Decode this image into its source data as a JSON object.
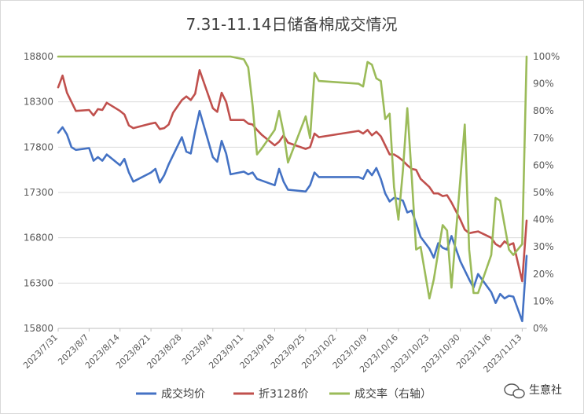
{
  "chart_data": {
    "type": "line",
    "title": "7.31-11.14日储备棉成交情况",
    "xlabel": "",
    "ylabel": "",
    "y_left": {
      "ylim": [
        15800,
        18800
      ],
      "ticks": [
        15800,
        16300,
        16800,
        17300,
        17800,
        18300,
        18800
      ]
    },
    "y_right": {
      "ylim": [
        0,
        100
      ],
      "ticks": [
        0,
        10,
        20,
        30,
        40,
        50,
        60,
        70,
        80,
        90,
        100
      ],
      "suffix": "%"
    },
    "x_range": [
      "2023/7/31",
      "2023/11/14"
    ],
    "x_ticks": [
      "2023/7/31",
      "2023/8/7",
      "2023/8/14",
      "2023/8/21",
      "2023/8/28",
      "2023/9/4",
      "2023/9/11",
      "2023/9/18",
      "2023/9/25",
      "2023/10/2",
      "2023/10/9",
      "2023/10/16",
      "2023/10/23",
      "2023/10/30",
      "2023/11/6",
      "2023/11/13"
    ],
    "grid": true,
    "legend": "bottom",
    "series": [
      {
        "name": "成交均价",
        "color": "#4472c4",
        "axis": "left",
        "points": [
          [
            "2023/7/31",
            17960
          ],
          [
            "2023/8/1",
            18020
          ],
          [
            "2023/8/2",
            17940
          ],
          [
            "2023/8/3",
            17800
          ],
          [
            "2023/8/4",
            17770
          ],
          [
            "2023/8/7",
            17790
          ],
          [
            "2023/8/8",
            17650
          ],
          [
            "2023/8/9",
            17690
          ],
          [
            "2023/8/10",
            17650
          ],
          [
            "2023/8/11",
            17720
          ],
          [
            "2023/8/14",
            17600
          ],
          [
            "2023/8/15",
            17670
          ],
          [
            "2023/8/16",
            17520
          ],
          [
            "2023/8/17",
            17420
          ],
          [
            "2023/8/21",
            17520
          ],
          [
            "2023/8/22",
            17560
          ],
          [
            "2023/8/23",
            17410
          ],
          [
            "2023/8/24",
            17490
          ],
          [
            "2023/8/25",
            17610
          ],
          [
            "2023/8/28",
            17910
          ],
          [
            "2023/8/29",
            17750
          ],
          [
            "2023/8/30",
            17730
          ],
          [
            "2023/8/31",
            17980
          ],
          [
            "2023/9/1",
            18200
          ],
          [
            "2023/9/4",
            17690
          ],
          [
            "2023/9/5",
            17640
          ],
          [
            "2023/9/6",
            17870
          ],
          [
            "2023/9/7",
            17730
          ],
          [
            "2023/9/8",
            17500
          ],
          [
            "2023/9/11",
            17530
          ],
          [
            "2023/9/12",
            17500
          ],
          [
            "2023/9/13",
            17520
          ],
          [
            "2023/9/14",
            17450
          ],
          [
            "2023/9/18",
            17380
          ],
          [
            "2023/9/19",
            17560
          ],
          [
            "2023/9/20",
            17420
          ],
          [
            "2023/9/21",
            17330
          ],
          [
            "2023/9/25",
            17310
          ],
          [
            "2023/9/26",
            17380
          ],
          [
            "2023/9/27",
            17520
          ],
          [
            "2023/9/28",
            17470
          ],
          [
            "2023/10/7",
            17470
          ],
          [
            "2023/10/8",
            17450
          ],
          [
            "2023/10/9",
            17550
          ],
          [
            "2023/10/10",
            17490
          ],
          [
            "2023/10/11",
            17570
          ],
          [
            "2023/10/12",
            17450
          ],
          [
            "2023/10/13",
            17290
          ],
          [
            "2023/10/14",
            17200
          ],
          [
            "2023/10/15",
            17240
          ],
          [
            "2023/10/16",
            17230
          ],
          [
            "2023/10/17",
            17210
          ],
          [
            "2023/10/18",
            17080
          ],
          [
            "2023/10/19",
            17100
          ],
          [
            "2023/10/20",
            16960
          ],
          [
            "2023/10/21",
            16810
          ],
          [
            "2023/10/23",
            16680
          ],
          [
            "2023/10/24",
            16580
          ],
          [
            "2023/10/25",
            16740
          ],
          [
            "2023/10/26",
            16690
          ],
          [
            "2023/10/27",
            16670
          ],
          [
            "2023/10/28",
            16820
          ],
          [
            "2023/10/30",
            16540
          ],
          [
            "2023/10/31",
            16440
          ],
          [
            "2023/11/1",
            16340
          ],
          [
            "2023/11/2",
            16250
          ],
          [
            "2023/11/3",
            16400
          ],
          [
            "2023/11/6",
            16200
          ],
          [
            "2023/11/7",
            16080
          ],
          [
            "2023/11/8",
            16180
          ],
          [
            "2023/11/9",
            16130
          ],
          [
            "2023/11/10",
            16160
          ],
          [
            "2023/11/11",
            16150
          ],
          [
            "2023/11/13",
            15880
          ],
          [
            "2023/11/14",
            16600
          ]
        ]
      },
      {
        "name": "折3128价",
        "color": "#c0504d",
        "axis": "left",
        "points": [
          [
            "2023/7/31",
            18460
          ],
          [
            "2023/8/1",
            18590
          ],
          [
            "2023/8/2",
            18400
          ],
          [
            "2023/8/3",
            18300
          ],
          [
            "2023/8/4",
            18200
          ],
          [
            "2023/8/7",
            18210
          ],
          [
            "2023/8/8",
            18150
          ],
          [
            "2023/8/9",
            18220
          ],
          [
            "2023/8/10",
            18210
          ],
          [
            "2023/8/11",
            18290
          ],
          [
            "2023/8/14",
            18200
          ],
          [
            "2023/8/15",
            18160
          ],
          [
            "2023/8/16",
            18040
          ],
          [
            "2023/8/17",
            18010
          ],
          [
            "2023/8/21",
            18060
          ],
          [
            "2023/8/22",
            18070
          ],
          [
            "2023/8/23",
            18000
          ],
          [
            "2023/8/24",
            18010
          ],
          [
            "2023/8/25",
            18050
          ],
          [
            "2023/8/26",
            18180
          ],
          [
            "2023/8/28",
            18320
          ],
          [
            "2023/8/29",
            18360
          ],
          [
            "2023/8/30",
            18320
          ],
          [
            "2023/8/31",
            18390
          ],
          [
            "2023/9/1",
            18650
          ],
          [
            "2023/9/4",
            18230
          ],
          [
            "2023/9/5",
            18190
          ],
          [
            "2023/9/6",
            18400
          ],
          [
            "2023/9/7",
            18300
          ],
          [
            "2023/9/8",
            18100
          ],
          [
            "2023/9/11",
            18100
          ],
          [
            "2023/9/12",
            18060
          ],
          [
            "2023/9/13",
            18050
          ],
          [
            "2023/9/14",
            17990
          ],
          [
            "2023/9/15",
            17940
          ],
          [
            "2023/9/18",
            17820
          ],
          [
            "2023/9/19",
            17860
          ],
          [
            "2023/9/20",
            17930
          ],
          [
            "2023/9/21",
            17850
          ],
          [
            "2023/9/25",
            17780
          ],
          [
            "2023/9/26",
            17800
          ],
          [
            "2023/9/27",
            17950
          ],
          [
            "2023/9/28",
            17910
          ],
          [
            "2023/10/7",
            17980
          ],
          [
            "2023/10/8",
            17950
          ],
          [
            "2023/10/9",
            17990
          ],
          [
            "2023/10/10",
            17930
          ],
          [
            "2023/10/11",
            17970
          ],
          [
            "2023/10/12",
            17920
          ],
          [
            "2023/10/13",
            17820
          ],
          [
            "2023/10/14",
            17720
          ],
          [
            "2023/10/15",
            17720
          ],
          [
            "2023/10/16",
            17690
          ],
          [
            "2023/10/17",
            17650
          ],
          [
            "2023/10/18",
            17600
          ],
          [
            "2023/10/19",
            17560
          ],
          [
            "2023/10/20",
            17550
          ],
          [
            "2023/10/21",
            17450
          ],
          [
            "2023/10/23",
            17360
          ],
          [
            "2023/10/24",
            17290
          ],
          [
            "2023/10/25",
            17290
          ],
          [
            "2023/10/26",
            17260
          ],
          [
            "2023/10/27",
            17270
          ],
          [
            "2023/10/28",
            17190
          ],
          [
            "2023/10/30",
            17000
          ],
          [
            "2023/10/31",
            16890
          ],
          [
            "2023/11/1",
            16850
          ],
          [
            "2023/11/2",
            16860
          ],
          [
            "2023/11/3",
            16870
          ],
          [
            "2023/11/6",
            16800
          ],
          [
            "2023/11/7",
            16730
          ],
          [
            "2023/11/8",
            16700
          ],
          [
            "2023/11/9",
            16760
          ],
          [
            "2023/11/10",
            16720
          ],
          [
            "2023/11/11",
            16740
          ],
          [
            "2023/11/13",
            16320
          ],
          [
            "2023/11/14",
            16990
          ]
        ]
      },
      {
        "name": "成交率（右轴）",
        "color": "#9bbb59",
        "axis": "right",
        "points": [
          [
            "2023/7/31",
            100
          ],
          [
            "2023/9/8",
            100
          ],
          [
            "2023/9/11",
            99
          ],
          [
            "2023/9/12",
            96
          ],
          [
            "2023/9/13",
            82
          ],
          [
            "2023/9/14",
            64
          ],
          [
            "2023/9/15",
            66
          ],
          [
            "2023/9/18",
            73
          ],
          [
            "2023/9/19",
            80
          ],
          [
            "2023/9/20",
            72
          ],
          [
            "2023/9/21",
            61
          ],
          [
            "2023/9/25",
            78
          ],
          [
            "2023/9/26",
            70
          ],
          [
            "2023/9/27",
            94
          ],
          [
            "2023/9/28",
            91
          ],
          [
            "2023/10/7",
            90
          ],
          [
            "2023/10/8",
            89
          ],
          [
            "2023/10/9",
            98
          ],
          [
            "2023/10/10",
            97
          ],
          [
            "2023/10/11",
            92
          ],
          [
            "2023/10/12",
            91
          ],
          [
            "2023/10/13",
            77
          ],
          [
            "2023/10/14",
            79
          ],
          [
            "2023/10/15",
            52
          ],
          [
            "2023/10/16",
            40
          ],
          [
            "2023/10/17",
            58
          ],
          [
            "2023/10/18",
            81
          ],
          [
            "2023/10/19",
            56
          ],
          [
            "2023/10/20",
            29
          ],
          [
            "2023/10/21",
            30
          ],
          [
            "2023/10/23",
            11
          ],
          [
            "2023/10/24",
            18
          ],
          [
            "2023/10/25",
            28
          ],
          [
            "2023/10/26",
            38
          ],
          [
            "2023/10/27",
            36
          ],
          [
            "2023/10/28",
            15
          ],
          [
            "2023/10/30",
            55
          ],
          [
            "2023/10/31",
            75
          ],
          [
            "2023/11/1",
            29
          ],
          [
            "2023/11/2",
            13
          ],
          [
            "2023/11/3",
            13
          ],
          [
            "2023/11/6",
            27
          ],
          [
            "2023/11/7",
            48
          ],
          [
            "2023/11/8",
            47
          ],
          [
            "2023/11/9",
            38
          ],
          [
            "2023/11/10",
            29
          ],
          [
            "2023/11/11",
            27
          ],
          [
            "2023/11/13",
            31
          ],
          [
            "2023/11/14",
            100
          ]
        ]
      }
    ]
  },
  "watermark": {
    "icon": "wechat-icon",
    "text": "生意社"
  }
}
